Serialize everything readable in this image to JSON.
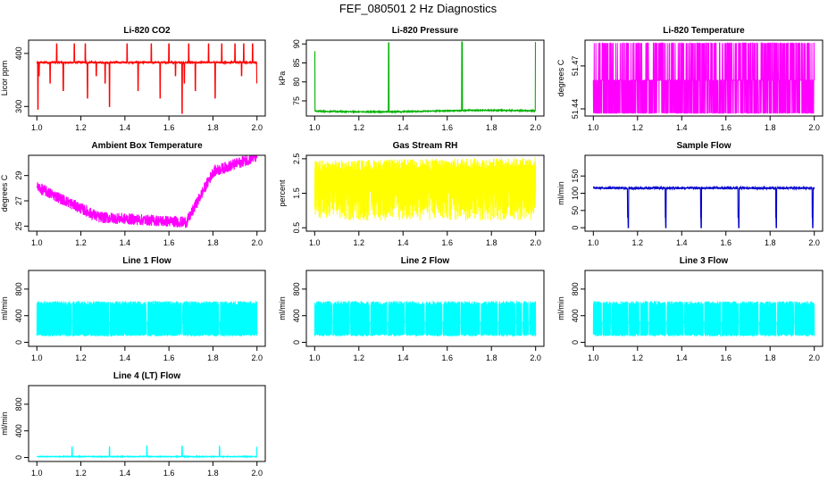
{
  "suptitle": "FEF_080501  2 Hz Diagnostics",
  "chart_data": [
    {
      "type": "line",
      "title": "Li-820 CO2",
      "ylabel": "Licor ppm",
      "xlim": [
        1.0,
        2.0
      ],
      "ylim": [
        282,
        425
      ],
      "yticks": [
        300,
        400
      ],
      "xticks": [
        1.0,
        1.2,
        1.4,
        1.6,
        1.8,
        2.0
      ],
      "color": "#ff0000",
      "style": "co2",
      "base": 383
    },
    {
      "type": "line",
      "title": "Li-820 Pressure",
      "ylabel": "kPa",
      "xlim": [
        1.0,
        2.0
      ],
      "ylim": [
        71,
        91
      ],
      "yticks": [
        75,
        80,
        85,
        90
      ],
      "xticks": [
        1.0,
        1.2,
        1.4,
        1.6,
        1.8,
        2.0
      ],
      "color": "#00b000",
      "style": "pressure",
      "base": 72.3
    },
    {
      "type": "line",
      "title": "Li-820 Temperature",
      "ylabel": "degrees C",
      "xlim": [
        1.0,
        2.0
      ],
      "ylim": [
        51.435,
        51.488
      ],
      "yticks": [
        51.44,
        51.47
      ],
      "yticklabels": [
        "51.44",
        "51.47"
      ],
      "extra_tick_label": "51.47",
      "xticks": [
        1.0,
        1.2,
        1.4,
        1.6,
        1.8,
        2.0
      ],
      "color": "#ff00ff",
      "style": "temp"
    },
    {
      "type": "line",
      "title": "Ambient Box Temperature",
      "ylabel": "degrees C",
      "xlim": [
        1.0,
        2.0
      ],
      "ylim": [
        24.6,
        30.6
      ],
      "yticks": [
        25,
        27,
        29
      ],
      "xticks": [
        1.0,
        1.2,
        1.4,
        1.6,
        1.8,
        2.0
      ],
      "color": "#ff00ff",
      "style": "ambient"
    },
    {
      "type": "line",
      "title": "Gas Stream RH",
      "ylabel": "percent",
      "xlim": [
        1.0,
        2.0
      ],
      "ylim": [
        0.4,
        2.6
      ],
      "yticks": [
        0.5,
        1.5,
        2.5
      ],
      "yticklabels": [
        "0.5",
        "1.5",
        "2.5"
      ],
      "extra_tick_label": "",
      "xticks": [
        1.0,
        1.2,
        1.4,
        1.6,
        1.8,
        2.0
      ],
      "color": "#ffff00",
      "style": "rh"
    },
    {
      "type": "line",
      "title": "Sample Flow",
      "ylabel": "ml/min",
      "xlim": [
        1.0,
        2.0
      ],
      "ylim": [
        -10,
        210
      ],
      "yticks": [
        0,
        50,
        100,
        150
      ],
      "xticks": [
        1.0,
        1.2,
        1.4,
        1.6,
        1.8,
        2.0
      ],
      "color": "#0000cc",
      "style": "sample",
      "base": 115
    },
    {
      "type": "line",
      "title": "Line 1 Flow",
      "ylabel": "ml/min",
      "xlim": [
        1.0,
        2.0
      ],
      "ylim": [
        -60,
        1080
      ],
      "yticks": [
        0,
        400,
        800
      ],
      "xticks": [
        1.0,
        1.2,
        1.4,
        1.6,
        1.8,
        2.0
      ],
      "color": "#00ffff",
      "style": "band",
      "gaps": [
        1.16,
        1.33,
        1.5,
        1.66,
        1.83
      ]
    },
    {
      "type": "line",
      "title": "Line 2 Flow",
      "ylabel": "ml/min",
      "xlim": [
        1.0,
        2.0
      ],
      "ylim": [
        -60,
        1080
      ],
      "yticks": [
        0,
        400,
        800
      ],
      "xticks": [
        1.0,
        1.2,
        1.4,
        1.6,
        1.8,
        2.0
      ],
      "color": "#00ffff",
      "style": "band",
      "gaps": [
        1.08,
        1.16,
        1.25,
        1.33,
        1.41,
        1.5,
        1.58,
        1.66,
        1.75,
        1.83,
        1.91,
        1.94,
        1.97
      ]
    },
    {
      "type": "line",
      "title": "Line 3 Flow",
      "ylabel": "ml/min",
      "xlim": [
        1.0,
        2.0
      ],
      "ylim": [
        -60,
        1080
      ],
      "yticks": [
        0,
        400,
        800
      ],
      "xticks": [
        1.0,
        1.2,
        1.4,
        1.6,
        1.8,
        2.0
      ],
      "color": "#00ffff",
      "style": "band",
      "gaps": [
        1.04,
        1.08,
        1.16,
        1.21,
        1.25,
        1.33,
        1.41,
        1.5,
        1.58,
        1.66,
        1.75,
        1.83,
        1.91
      ]
    },
    {
      "type": "line",
      "title": "Line 4 (LT) Flow",
      "ylabel": "ml/min",
      "xlim": [
        1.0,
        2.0
      ],
      "ylim": [
        -60,
        1080
      ],
      "yticks": [
        0,
        400,
        800
      ],
      "xticks": [
        1.0,
        1.2,
        1.4,
        1.6,
        1.8,
        2.0
      ],
      "color": "#00ffff",
      "style": "lt",
      "spikes": [
        1.16,
        1.33,
        1.5,
        1.66,
        1.83,
        2.0
      ]
    }
  ]
}
